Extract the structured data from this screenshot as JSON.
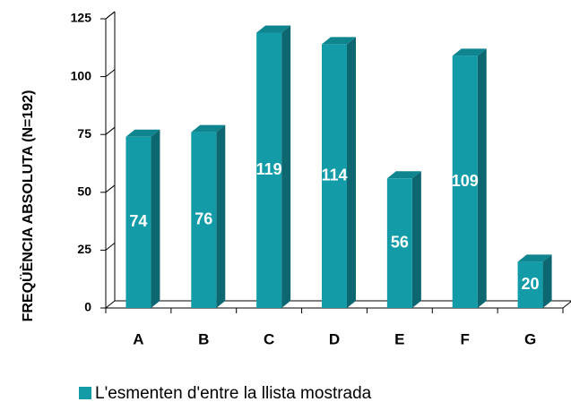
{
  "chart_data": {
    "type": "bar",
    "y_label": "FREQÜÈNCIA ABSOLUTA  (N=192)",
    "categories": [
      "A",
      "B",
      "C",
      "D",
      "E",
      "F",
      "G"
    ],
    "series": [
      {
        "name": "L'esmenten d'entre la llista mostrada",
        "color": "#139ca8",
        "values": [
          74,
          76,
          119,
          114,
          56,
          109,
          20
        ]
      }
    ],
    "ylim": [
      0,
      125
    ],
    "yticks": [
      0,
      25,
      50,
      75,
      100,
      125
    ],
    "legend": "bottom"
  }
}
